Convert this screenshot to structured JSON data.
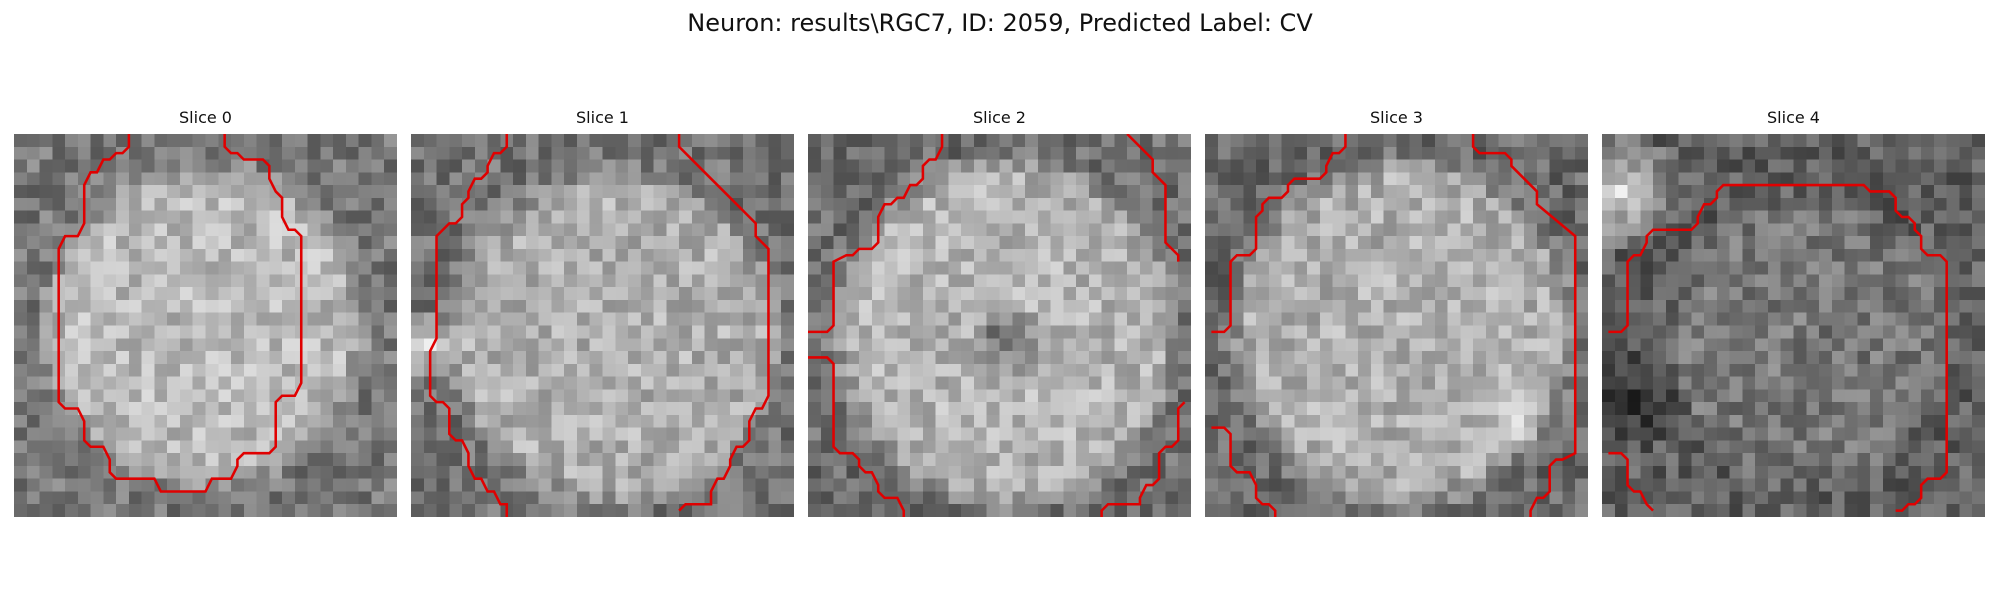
{
  "figure": {
    "title": "Neuron: results\\RGC7, ID: 2059, Predicted Label: CV"
  },
  "panels": [
    {
      "title": "Slice 0",
      "image_description_icon": "grayscale-patch-icon"
    },
    {
      "title": "Slice 1",
      "image_description_icon": "grayscale-patch-icon"
    },
    {
      "title": "Slice 2",
      "image_description_icon": "grayscale-patch-icon"
    },
    {
      "title": "Slice 3",
      "image_description_icon": "grayscale-patch-icon"
    },
    {
      "title": "Slice 4",
      "image_description_icon": "grayscale-patch-icon"
    }
  ],
  "colors": {
    "contour": "#e00000",
    "background": "#ffffff"
  }
}
